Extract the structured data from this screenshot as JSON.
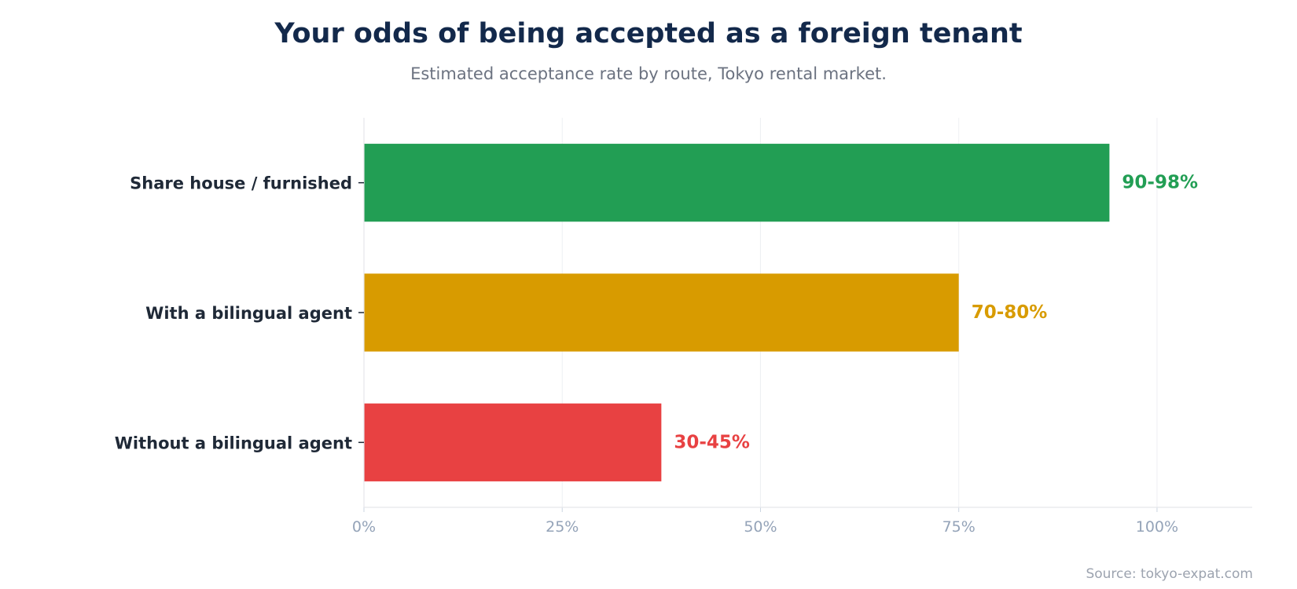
{
  "chart_data": {
    "type": "bar",
    "orientation": "horizontal",
    "title": "Your odds of being accepted as a foreign tenant",
    "subtitle": "Estimated acceptance rate by route, Tokyo rental market.",
    "source": "Source: tokyo-expat.com",
    "xlabel": "",
    "ylabel": "",
    "xlim": [
      0,
      112
    ],
    "xticks": [
      0,
      25,
      50,
      75,
      100
    ],
    "xtick_labels": [
      "0%",
      "25%",
      "50%",
      "75%",
      "100%"
    ],
    "grid": "vertical",
    "categories": [
      "Share house / furnished",
      "With a bilingual agent",
      "Without a bilingual agent"
    ],
    "values": [
      94,
      75,
      37.5
    ],
    "value_labels": [
      "90-98%",
      "70-80%",
      "30-45%"
    ],
    "colors": [
      "#229e54",
      "#d89b00",
      "#e84142"
    ]
  }
}
